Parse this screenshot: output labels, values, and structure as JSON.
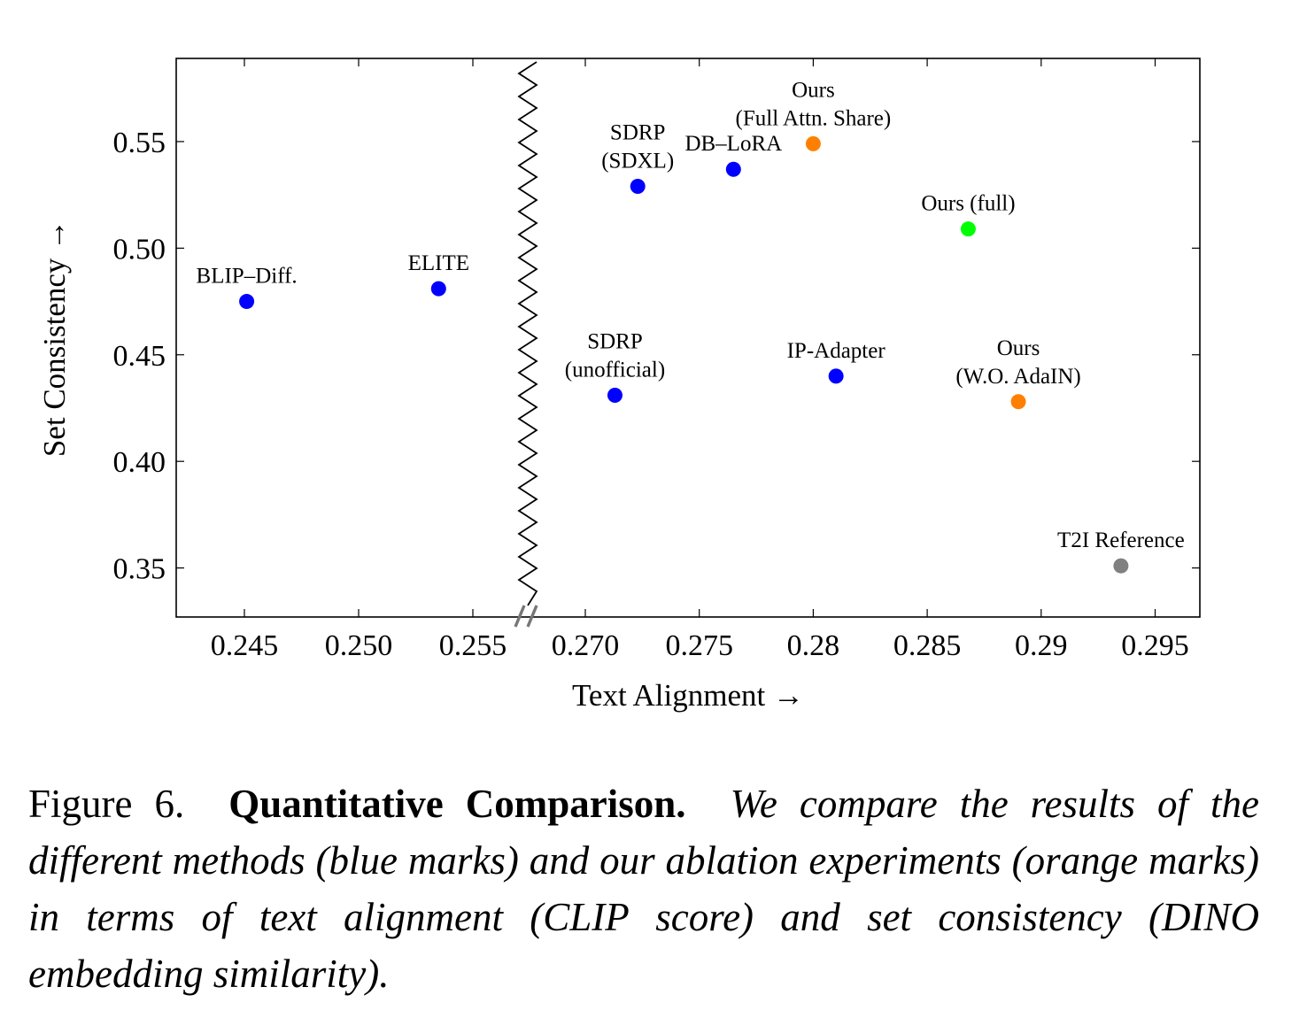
{
  "chart_data": {
    "type": "scatter",
    "xlabel": "Text Alignment →",
    "ylabel": "Set Consistency →",
    "xaxis_break": {
      "skipped_from": 0.255,
      "skipped_to": 0.27
    },
    "x_ticks": [
      "0.245",
      "0.250",
      "0.255",
      "0.270",
      "0.275",
      "0.28",
      "0.285",
      "0.29",
      "0.295"
    ],
    "y_ticks": [
      "0.35",
      "0.40",
      "0.45",
      "0.50",
      "0.55"
    ],
    "ylim": [
      0.327,
      0.589
    ],
    "series": [
      {
        "name": "different methods",
        "color": "#0000ff",
        "points": [
          {
            "label": [
              "BLIP–Diff."
            ],
            "x": 0.2451,
            "y": 0.475
          },
          {
            "label": [
              "ELITE"
            ],
            "x": 0.2535,
            "y": 0.481
          },
          {
            "label": [
              "SDRP",
              "(SDXL)"
            ],
            "x": 0.2723,
            "y": 0.529
          },
          {
            "label": [
              "DB–LoRA"
            ],
            "x": 0.2765,
            "y": 0.537
          },
          {
            "label": [
              "SDRP",
              "(unofficial)"
            ],
            "x": 0.2713,
            "y": 0.431
          },
          {
            "label": [
              "IP-Adapter"
            ],
            "x": 0.281,
            "y": 0.44
          }
        ]
      },
      {
        "name": "ablation experiments",
        "color": "#ff8000",
        "points": [
          {
            "label": [
              "Ours",
              "(Full Attn. Share)"
            ],
            "x": 0.28,
            "y": 0.549
          },
          {
            "label": [
              "Ours",
              "(W.O. AdaIN)"
            ],
            "x": 0.289,
            "y": 0.428
          }
        ]
      },
      {
        "name": "full method",
        "color": "#00ff00",
        "points": [
          {
            "label": [
              "Ours (full)"
            ],
            "x": 0.2868,
            "y": 0.509
          }
        ]
      },
      {
        "name": "reference",
        "color": "#808080",
        "points": [
          {
            "label": [
              "T2I Reference"
            ],
            "x": 0.2935,
            "y": 0.351
          }
        ]
      }
    ]
  },
  "caption": {
    "figure_number": "Figure 6.",
    "title": "Quantitative Comparison.",
    "text": "We compare the results of the different methods (blue marks) and our ablation experiments (orange marks) in terms of text alignment (CLIP score) and set consistency (DINO embedding similarity)."
  }
}
